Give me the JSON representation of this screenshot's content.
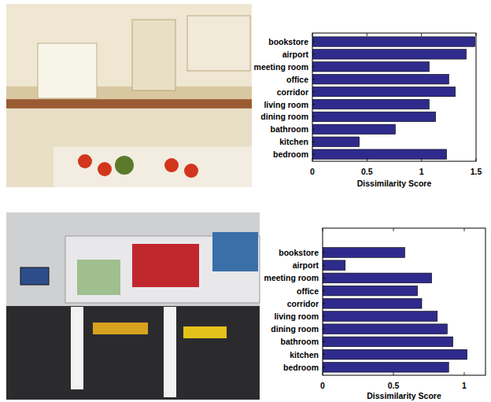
{
  "chart_data": [
    {
      "type": "bar",
      "orientation": "horizontal",
      "color": "#2f2b8c",
      "categories": [
        "bookstore",
        "airport",
        "meeting room",
        "office",
        "corridor",
        "living room",
        "dining room",
        "bathroom",
        "kitchen",
        "bedroom"
      ],
      "values": [
        1.49,
        1.41,
        1.07,
        1.25,
        1.31,
        1.07,
        1.13,
        0.76,
        0.43,
        1.23
      ],
      "x_label": "Dissimilarity Score",
      "xlim": [
        0,
        1.5
      ],
      "xticks": [
        0,
        0.5,
        1,
        1.5
      ]
    },
    {
      "type": "bar",
      "orientation": "horizontal",
      "color": "#2f2b8c",
      "categories": [
        "bookstore",
        "airport",
        "meeting room",
        "office",
        "corridor",
        "living room",
        "dining room",
        "bathroom",
        "kitchen",
        "bedroom"
      ],
      "values": [
        0.58,
        0.16,
        0.77,
        0.67,
        0.7,
        0.81,
        0.88,
        0.92,
        1.02,
        0.89
      ],
      "x_label": "Dissimilarity Score",
      "xlim": [
        0,
        1.15
      ],
      "xticks": [
        0,
        0.5,
        1
      ]
    }
  ]
}
